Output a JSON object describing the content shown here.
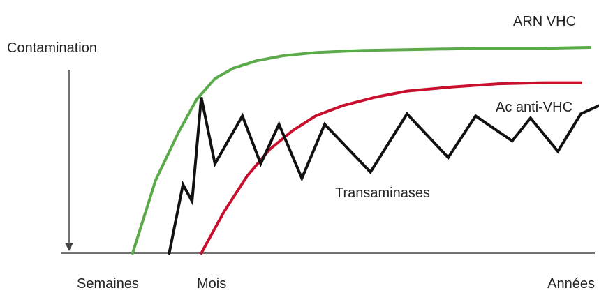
{
  "chart_data": {
    "type": "line",
    "title": "",
    "xlabel": "",
    "ylabel": "Contamination",
    "x_tick_labels": [
      "Semaines",
      "Mois",
      "Années"
    ],
    "y_axis_direction": "arrow pointing down",
    "grid": false,
    "legend": "inline labels",
    "series": [
      {
        "name": "ARN VHC",
        "color": "#5aaa4a",
        "x": [
          0.0,
          0.05,
          0.1,
          0.14,
          0.18,
          0.22,
          0.27,
          0.33,
          0.4,
          0.5,
          0.62,
          0.75,
          0.88,
          1.0
        ],
        "y": [
          0.0,
          0.35,
          0.58,
          0.74,
          0.84,
          0.89,
          0.925,
          0.95,
          0.965,
          0.975,
          0.98,
          0.985,
          0.985,
          0.99
        ]
      },
      {
        "name": "Ac anti-VHC",
        "color": "#c8102e",
        "x": [
          0.15,
          0.2,
          0.25,
          0.3,
          0.35,
          0.4,
          0.46,
          0.53,
          0.6,
          0.7,
          0.8,
          0.9,
          0.98
        ],
        "y": [
          0.0,
          0.2,
          0.37,
          0.5,
          0.59,
          0.66,
          0.71,
          0.75,
          0.78,
          0.8,
          0.815,
          0.82,
          0.82
        ]
      },
      {
        "name": "Transaminases",
        "color": "#111111",
        "x": [
          0.08,
          0.11,
          0.13,
          0.15,
          0.18,
          0.24,
          0.28,
          0.32,
          0.37,
          0.42,
          0.52,
          0.6,
          0.69,
          0.75,
          0.83,
          0.87,
          0.93,
          0.98,
          1.02
        ],
        "y": [
          0.0,
          0.33,
          0.25,
          0.75,
          0.43,
          0.66,
          0.43,
          0.62,
          0.36,
          0.62,
          0.39,
          0.67,
          0.46,
          0.66,
          0.54,
          0.65,
          0.49,
          0.67,
          0.71
        ]
      }
    ]
  }
}
